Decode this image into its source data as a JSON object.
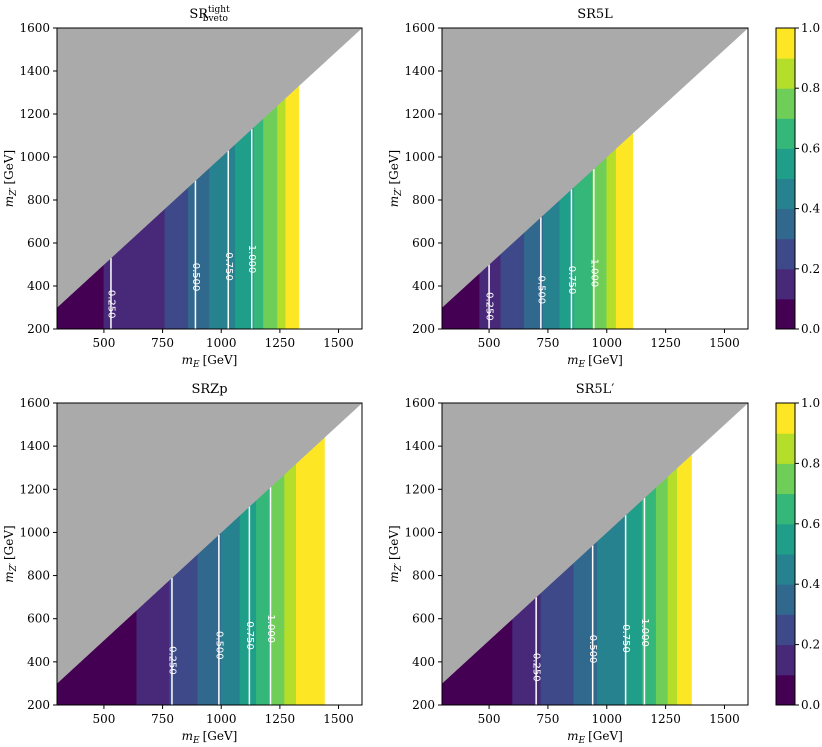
{
  "chart_data": {
    "type": "contour",
    "shared": {
      "xlabel_var": "m",
      "xlabel_sub": "E",
      "xlabel_unit": "[GeV]",
      "ylabel_var": "m",
      "ylabel_sub": "Z′",
      "ylabel_unit": "[GeV]",
      "xlim": [
        300,
        1600
      ],
      "ylim": [
        200,
        1600
      ],
      "xticks": [
        500,
        750,
        1000,
        1250,
        1500
      ],
      "yticks": [
        200,
        400,
        600,
        800,
        1000,
        1200,
        1400,
        1600
      ],
      "levels": [
        0.0,
        0.1,
        0.2,
        0.3,
        0.4,
        0.5,
        0.6,
        0.7,
        0.8,
        0.9,
        1.0
      ],
      "excluded_region": "mZ' > mE (gray)",
      "colormap": [
        "#440154",
        "#482878",
        "#3e4989",
        "#31688e",
        "#26828e",
        "#1f9e89",
        "#35b779",
        "#6ece58",
        "#b5de2b",
        "#fde725"
      ]
    },
    "panels": [
      {
        "title": "SR",
        "title_sup": "tight",
        "title_sub": "bveto",
        "max_x": 1330,
        "xlevels": [
          300,
          500,
          760,
          860,
          950,
          1060,
          1140,
          1180,
          1240,
          1275,
          1300,
          1330
        ],
        "contour_lines": [
          {
            "value": 0.25,
            "label": "0.250",
            "x": 530
          },
          {
            "value": 0.5,
            "label": "0.500",
            "x": 890
          },
          {
            "value": 0.75,
            "label": "0.750",
            "x": 1030
          },
          {
            "value": 1.0,
            "label": "1.000",
            "x": 1130
          }
        ]
      },
      {
        "title": "SR5L",
        "max_x": 1110,
        "xlevels": [
          300,
          460,
          550,
          650,
          730,
          800,
          860,
          940,
          1000,
          1040,
          1080,
          1110
        ],
        "contour_lines": [
          {
            "value": 0.25,
            "label": "0.250",
            "x": 500
          },
          {
            "value": 0.5,
            "label": "0.500",
            "x": 720
          },
          {
            "value": 0.75,
            "label": "0.750",
            "x": 850
          },
          {
            "value": 1.0,
            "label": "1.000",
            "x": 945
          }
        ]
      },
      {
        "title": "SRZp",
        "max_x": 1440,
        "xlevels": [
          300,
          640,
          780,
          900,
          1000,
          1080,
          1150,
          1210,
          1270,
          1320,
          1380,
          1440
        ],
        "contour_lines": [
          {
            "value": 0.25,
            "label": "0.250",
            "x": 790
          },
          {
            "value": 0.5,
            "label": "0.500",
            "x": 990
          },
          {
            "value": 0.75,
            "label": "0.750",
            "x": 1120
          },
          {
            "value": 1.0,
            "label": "1.000",
            "x": 1210
          }
        ]
      },
      {
        "title": "SR5L",
        "title_prime": "′",
        "max_x": 1360,
        "xlevels": [
          300,
          600,
          720,
          860,
          960,
          1080,
          1150,
          1210,
          1260,
          1300,
          1330,
          1360
        ],
        "contour_lines": [
          {
            "value": 0.25,
            "label": "0.250",
            "x": 700
          },
          {
            "value": 0.5,
            "label": "0.500",
            "x": 940
          },
          {
            "value": 0.75,
            "label": "0.750",
            "x": 1080
          },
          {
            "value": 1.0,
            "label": "1.000",
            "x": 1160
          }
        ]
      }
    ],
    "colorbar": {
      "ticks": [
        0.0,
        0.2,
        0.4,
        0.6,
        0.8,
        1.0
      ],
      "tick_labels": [
        "0.0",
        "0.2",
        "0.4",
        "0.6",
        "0.8",
        "1.0"
      ]
    }
  }
}
